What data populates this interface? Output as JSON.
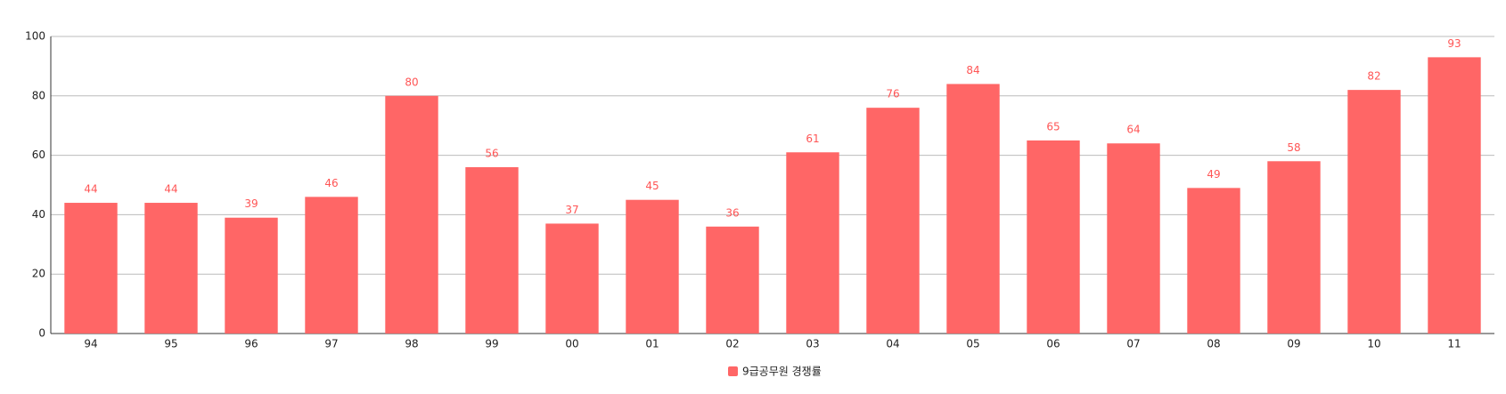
{
  "chart_data": {
    "type": "bar",
    "categories": [
      "94",
      "95",
      "96",
      "97",
      "98",
      "99",
      "00",
      "01",
      "02",
      "03",
      "04",
      "05",
      "06",
      "07",
      "08",
      "09",
      "10",
      "11"
    ],
    "series": [
      {
        "name": "9급공무원 경쟁률",
        "color": "#ff6666",
        "values": [
          44,
          44,
          39,
          46,
          80,
          56,
          37,
          45,
          36,
          61,
          76,
          84,
          65,
          64,
          49,
          58,
          82,
          93
        ]
      }
    ],
    "ylim": [
      0,
      100
    ],
    "yticks": [
      0,
      20,
      40,
      60,
      80,
      100
    ],
    "grid": true,
    "legend": "bottom"
  }
}
